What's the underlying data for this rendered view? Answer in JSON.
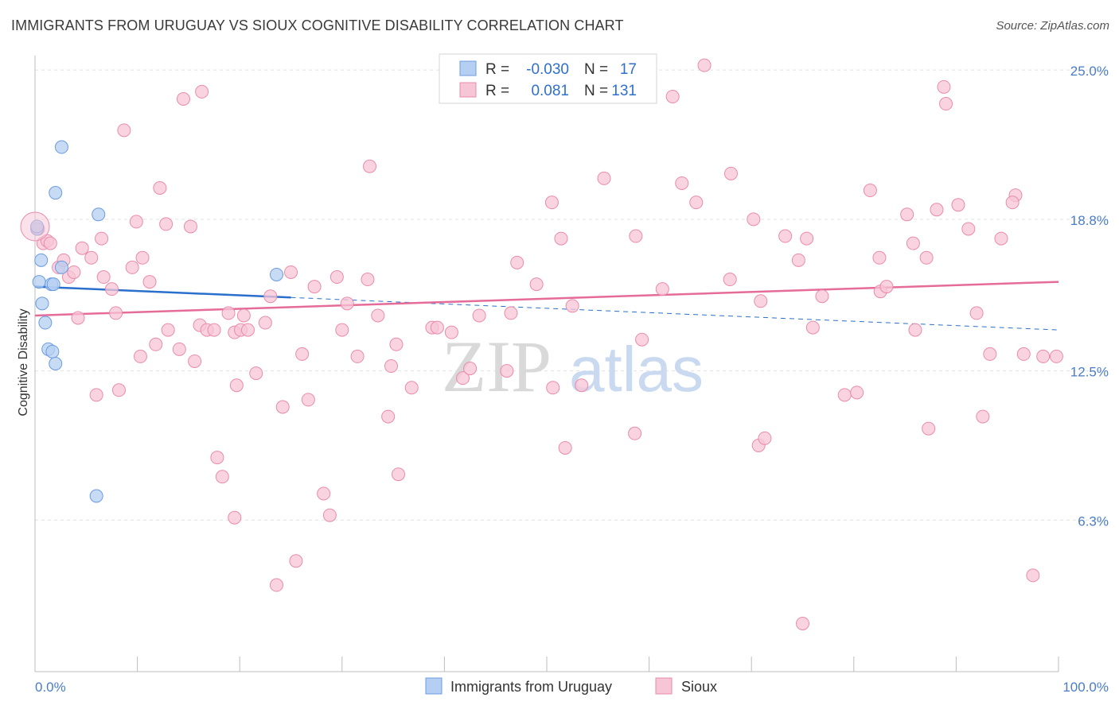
{
  "title": "IMMIGRANTS FROM URUGUAY VS SIOUX COGNITIVE DISABILITY CORRELATION CHART",
  "source": "Source: ZipAtlas.com",
  "watermark": {
    "zip": "ZIP",
    "atlas": "atlas"
  },
  "colors": {
    "uruguay_fill": "#b5cff2",
    "uruguay_stroke": "#6a9be0",
    "uruguay_line": "#2a6fcc",
    "sioux_fill": "#f7c6d6",
    "sioux_stroke": "#ea8bab",
    "sioux_line": "#e56b98",
    "tick_text": "#4a7cc9",
    "grid": "#e2e2e2"
  },
  "legend": {
    "rows": [
      {
        "r_label": "R =",
        "r_value": "-0.030",
        "n_label": "N =",
        "n_value": "17"
      },
      {
        "r_label": "R =",
        "r_value": "0.081",
        "n_label": "N =",
        "n_value": "131"
      }
    ]
  },
  "bottom_legend": [
    "Immigrants from Uruguay",
    "Sioux"
  ],
  "chart_data": {
    "type": "scatter",
    "title": "IMMIGRANTS FROM URUGUAY VS SIOUX COGNITIVE DISABILITY CORRELATION CHART",
    "xlabel": "",
    "ylabel": "Cognitive Disability",
    "xlim": [
      0,
      100
    ],
    "ylim": [
      0,
      25.6
    ],
    "x_ticks": [
      "0.0%",
      "100.0%"
    ],
    "y_ticks": [
      {
        "value": 6.3,
        "label": "6.3%"
      },
      {
        "value": 12.5,
        "label": "12.5%"
      },
      {
        "value": 18.8,
        "label": "18.8%"
      },
      {
        "value": 25.0,
        "label": "25.0%"
      }
    ],
    "grid": true,
    "legend_position": "top-center",
    "series": [
      {
        "name": "Immigrants from Uruguay",
        "r": -0.03,
        "n": 17,
        "trend": {
          "x0": 0,
          "y0": 16.0,
          "x1": 100,
          "y1": 14.2,
          "solid_until": 25
        },
        "points": [
          [
            0.2,
            18.4
          ],
          [
            0.4,
            16.2
          ],
          [
            0.7,
            15.3
          ],
          [
            0.6,
            17.1
          ],
          [
            1.0,
            14.5
          ],
          [
            1.3,
            13.4
          ],
          [
            1.6,
            16.1
          ],
          [
            1.7,
            13.3
          ],
          [
            1.8,
            16.1
          ],
          [
            2.0,
            12.8
          ],
          [
            2.6,
            16.8
          ],
          [
            2.0,
            19.9
          ],
          [
            2.6,
            21.8
          ],
          [
            6.2,
            19.0
          ],
          [
            6.0,
            7.3
          ],
          [
            23.6,
            16.5
          ],
          [
            0.2,
            18.5
          ]
        ]
      },
      {
        "name": "Sioux",
        "r": 0.081,
        "n": 131,
        "trend": {
          "x0": 0,
          "y0": 14.8,
          "x1": 100,
          "y1": 16.2
        },
        "points": [
          [
            0.3,
            18.4
          ],
          [
            0.8,
            17.8
          ],
          [
            1.2,
            17.9
          ],
          [
            1.5,
            17.8
          ],
          [
            2.3,
            16.8
          ],
          [
            2.8,
            17.1
          ],
          [
            3.3,
            16.4
          ],
          [
            3.8,
            16.6
          ],
          [
            4.2,
            14.7
          ],
          [
            4.6,
            17.6
          ],
          [
            5.5,
            17.2
          ],
          [
            6.0,
            11.5
          ],
          [
            6.5,
            18.0
          ],
          [
            6.7,
            16.4
          ],
          [
            7.5,
            15.9
          ],
          [
            7.9,
            14.9
          ],
          [
            8.2,
            11.7
          ],
          [
            8.7,
            22.5
          ],
          [
            9.5,
            16.8
          ],
          [
            9.9,
            18.7
          ],
          [
            10.3,
            13.1
          ],
          [
            10.5,
            17.2
          ],
          [
            11.2,
            16.2
          ],
          [
            11.8,
            13.6
          ],
          [
            12.2,
            20.1
          ],
          [
            12.8,
            18.6
          ],
          [
            13.0,
            14.2
          ],
          [
            14.1,
            13.4
          ],
          [
            14.5,
            23.8
          ],
          [
            15.2,
            18.5
          ],
          [
            15.6,
            12.9
          ],
          [
            16.1,
            14.4
          ],
          [
            16.3,
            24.1
          ],
          [
            16.8,
            14.2
          ],
          [
            17.5,
            14.2
          ],
          [
            17.8,
            8.9
          ],
          [
            18.3,
            8.1
          ],
          [
            18.9,
            14.9
          ],
          [
            19.5,
            6.4
          ],
          [
            19.7,
            11.9
          ],
          [
            19.5,
            14.1
          ],
          [
            20.1,
            14.2
          ],
          [
            20.4,
            14.8
          ],
          [
            20.8,
            14.2
          ],
          [
            21.6,
            12.4
          ],
          [
            22.5,
            14.5
          ],
          [
            23.0,
            15.6
          ],
          [
            23.6,
            3.6
          ],
          [
            24.2,
            11.0
          ],
          [
            25.0,
            16.6
          ],
          [
            25.5,
            4.6
          ],
          [
            26.1,
            13.2
          ],
          [
            26.7,
            11.3
          ],
          [
            27.3,
            16.0
          ],
          [
            28.2,
            7.4
          ],
          [
            28.8,
            6.5
          ],
          [
            29.5,
            16.4
          ],
          [
            30.0,
            14.2
          ],
          [
            30.5,
            15.3
          ],
          [
            31.5,
            13.1
          ],
          [
            32.7,
            21.0
          ],
          [
            33.5,
            14.8
          ],
          [
            34.5,
            10.6
          ],
          [
            34.8,
            12.7
          ],
          [
            35.3,
            13.6
          ],
          [
            32.5,
            16.3
          ],
          [
            35.5,
            8.2
          ],
          [
            36.8,
            11.8
          ],
          [
            38.8,
            14.3
          ],
          [
            39.3,
            14.3
          ],
          [
            40.7,
            14.1
          ],
          [
            41.8,
            12.2
          ],
          [
            42.5,
            12.6
          ],
          [
            43.4,
            14.8
          ],
          [
            46.5,
            14.9
          ],
          [
            46.1,
            12.5
          ],
          [
            47.1,
            17.0
          ],
          [
            50.6,
            11.8
          ],
          [
            50.5,
            19.5
          ],
          [
            51.4,
            18.0
          ],
          [
            51.8,
            9.3
          ],
          [
            53.4,
            11.9
          ],
          [
            52.5,
            15.2
          ],
          [
            58.6,
            9.9
          ],
          [
            59.3,
            13.8
          ],
          [
            58.7,
            18.1
          ],
          [
            61.3,
            15.9
          ],
          [
            62.3,
            23.9
          ],
          [
            63.2,
            20.3
          ],
          [
            64.6,
            19.5
          ],
          [
            65.4,
            25.2
          ],
          [
            67.9,
            16.3
          ],
          [
            68.0,
            20.7
          ],
          [
            70.2,
            18.8
          ],
          [
            70.9,
            15.4
          ],
          [
            70.7,
            9.4
          ],
          [
            71.3,
            9.7
          ],
          [
            73.3,
            18.1
          ],
          [
            74.6,
            17.1
          ],
          [
            75.4,
            18.0
          ],
          [
            76.0,
            14.3
          ],
          [
            76.9,
            15.6
          ],
          [
            79.1,
            11.5
          ],
          [
            80.3,
            11.6
          ],
          [
            81.6,
            20.0
          ],
          [
            82.5,
            17.2
          ],
          [
            82.6,
            15.8
          ],
          [
            83.2,
            16.0
          ],
          [
            85.2,
            19.0
          ],
          [
            85.8,
            17.8
          ],
          [
            86.0,
            14.2
          ],
          [
            87.1,
            17.2
          ],
          [
            87.3,
            10.1
          ],
          [
            88.1,
            19.2
          ],
          [
            88.8,
            24.3
          ],
          [
            89.0,
            23.6
          ],
          [
            90.2,
            19.4
          ],
          [
            91.2,
            18.4
          ],
          [
            92.0,
            14.9
          ],
          [
            92.6,
            10.6
          ],
          [
            93.3,
            13.2
          ],
          [
            94.4,
            18.0
          ],
          [
            95.8,
            19.8
          ],
          [
            95.5,
            19.5
          ],
          [
            96.6,
            13.2
          ],
          [
            97.5,
            4.0
          ],
          [
            98.5,
            13.1
          ],
          [
            99.8,
            13.1
          ],
          [
            75.0,
            2.0
          ],
          [
            49.0,
            16.1
          ],
          [
            55.6,
            20.5
          ]
        ]
      }
    ]
  }
}
